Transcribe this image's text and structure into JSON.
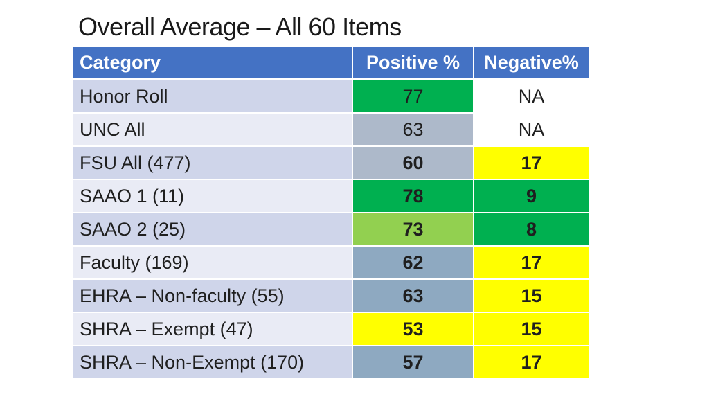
{
  "title": "Overall Average – All 60 Items",
  "header": {
    "category": "Category",
    "positive": "Positive %",
    "negative": "Negative%"
  },
  "colors": {
    "header": "#4472c4",
    "dark_green": "#00b050",
    "light_green": "#92d050",
    "yellow": "#ffff00",
    "gray_blue": "#adb9ca",
    "slate": "#8ea9c1"
  },
  "rows": [
    {
      "category": "Honor Roll",
      "positive": "77",
      "negative": "NA"
    },
    {
      "category": "UNC All",
      "positive": "63",
      "negative": "NA"
    },
    {
      "category": "FSU All (477)",
      "positive": "60",
      "negative": "17"
    },
    {
      "category": "SAAO 1 (11)",
      "positive": "78",
      "negative": "9"
    },
    {
      "category": "SAAO 2 (25)",
      "positive": "73",
      "negative": "8"
    },
    {
      "category": "Faculty (169)",
      "positive": "62",
      "negative": "17"
    },
    {
      "category": "EHRA – Non-faculty (55)",
      "positive": "63",
      "negative": "15"
    },
    {
      "category": "SHRA – Exempt (47)",
      "positive": "53",
      "negative": "15"
    },
    {
      "category": "SHRA – Non-Exempt (170)",
      "positive": "57",
      "negative": "17"
    }
  ]
}
